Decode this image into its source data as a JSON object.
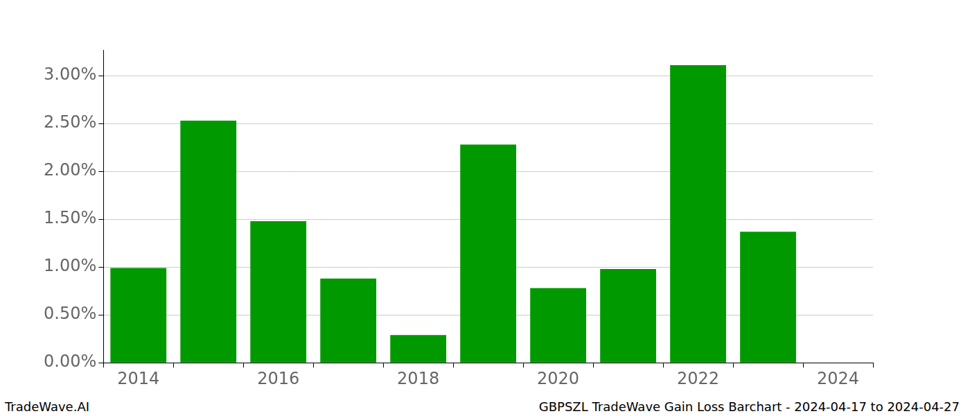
{
  "chart_data": {
    "type": "bar",
    "annotations": [
      "TradeWave.AI",
      "GBPSZL TradeWave Gain Loss Barchart - 2024-04-17 to 2024-04-27"
    ],
    "categories": [
      "2014",
      null,
      "2016",
      null,
      "2018",
      null,
      "2020",
      null,
      "2022",
      null,
      "2024"
    ],
    "values": [
      0.99,
      2.53,
      1.48,
      0.88,
      0.29,
      2.28,
      0.78,
      0.98,
      3.11,
      1.37,
      null
    ],
    "color": "#009900",
    "ylim": [
      0,
      3.27
    ],
    "yticks": [
      {
        "value": 0,
        "label": "0.00%"
      },
      {
        "value": 0.5,
        "label": "0.50%"
      },
      {
        "value": 1,
        "label": "1.00%"
      },
      {
        "value": 1.5,
        "label": "1.50%"
      },
      {
        "value": 2,
        "label": "2.00%"
      },
      {
        "value": 2.5,
        "label": "2.50%"
      },
      {
        "value": 3,
        "label": "3.00%"
      }
    ],
    "grid": true
  }
}
